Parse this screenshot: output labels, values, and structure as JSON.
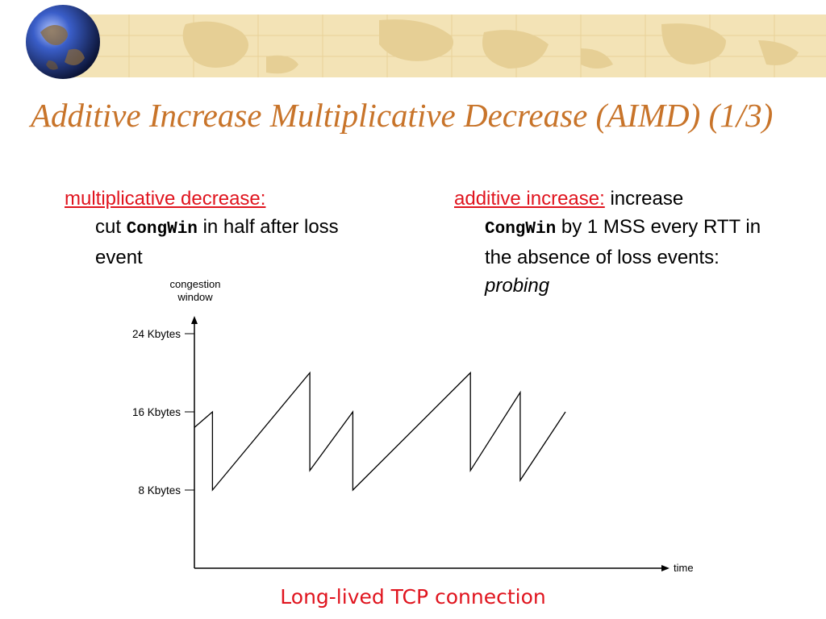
{
  "slide": {
    "title": "Additive Increase Multiplicative Decrease (AIMD) (1/3)",
    "colors": {
      "title": "#c8742a",
      "accent_red": "#e0141e",
      "banner_bg": "#f3e3b6"
    },
    "banner_icon": "globe-icon"
  },
  "left": {
    "heading": "multiplicative decrease:",
    "text_pre": "cut",
    "code": "CongWin",
    "text_post": "in half after loss event"
  },
  "right": {
    "heading": "additive increase:",
    "text_a": "increase",
    "code": "CongWin",
    "text_b": "by 1 MSS every RTT in the absence of loss events:",
    "emph": "probing"
  },
  "caption": "Long-lived TCP connection",
  "chart_data": {
    "type": "line",
    "ylabel": "congestion window",
    "xlabel": "time",
    "yticks": [
      {
        "value": 8,
        "label": "8 Kbytes"
      },
      {
        "value": 16,
        "label": "16 Kbytes"
      },
      {
        "value": 24,
        "label": "24 Kbytes"
      }
    ],
    "ylim": [
      0,
      25
    ],
    "xlim": [
      0,
      10
    ],
    "series": [
      {
        "points": [
          [
            0.0,
            14.4
          ],
          [
            0.4,
            16.0
          ],
          [
            0.4,
            8.0
          ],
          [
            2.55,
            20.0
          ],
          [
            2.55,
            10.0
          ],
          [
            3.5,
            16.0
          ],
          [
            3.5,
            8.0
          ],
          [
            6.1,
            20.0
          ],
          [
            6.1,
            10.0
          ],
          [
            7.2,
            18.0
          ],
          [
            7.2,
            9.0
          ],
          [
            8.2,
            16.0
          ]
        ]
      }
    ],
    "grid": false
  }
}
